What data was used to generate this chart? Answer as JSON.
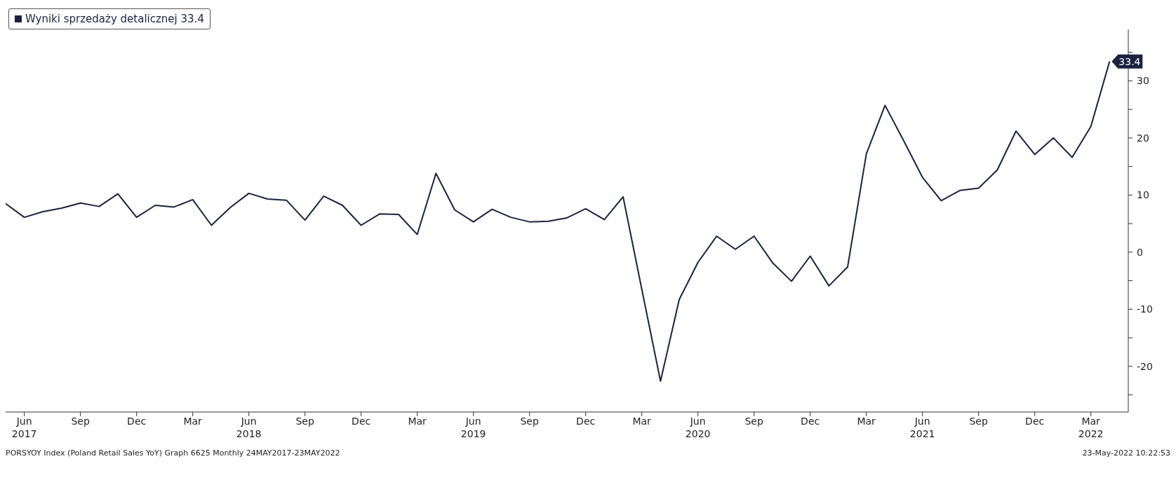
{
  "chart_data": {
    "type": "line",
    "x": [
      "2017-05",
      "2017-06",
      "2017-07",
      "2017-08",
      "2017-09",
      "2017-10",
      "2017-11",
      "2017-12",
      "2018-01",
      "2018-02",
      "2018-03",
      "2018-04",
      "2018-05",
      "2018-06",
      "2018-07",
      "2018-08",
      "2018-09",
      "2018-10",
      "2018-11",
      "2018-12",
      "2019-01",
      "2019-02",
      "2019-03",
      "2019-04",
      "2019-05",
      "2019-06",
      "2019-07",
      "2019-08",
      "2019-09",
      "2019-10",
      "2019-11",
      "2019-12",
      "2020-01",
      "2020-02",
      "2020-03",
      "2020-04",
      "2020-05",
      "2020-06",
      "2020-07",
      "2020-08",
      "2020-09",
      "2020-10",
      "2020-11",
      "2020-12",
      "2021-01",
      "2021-02",
      "2021-03",
      "2021-04",
      "2021-05",
      "2021-06",
      "2021-07",
      "2021-08",
      "2021-09",
      "2021-10",
      "2021-11",
      "2021-12",
      "2022-01",
      "2022-02",
      "2022-03",
      "2022-04"
    ],
    "series": [
      {
        "name": "Wyniki sprzedaży detalicznej 33.4",
        "color": "#1b2240",
        "values": [
          8.5,
          6.1,
          7.1,
          7.7,
          8.6,
          8.0,
          10.2,
          6.1,
          8.2,
          7.9,
          9.2,
          4.7,
          7.8,
          10.3,
          9.3,
          9.1,
          5.6,
          9.8,
          8.2,
          4.7,
          6.7,
          6.6,
          3.1,
          13.8,
          7.4,
          5.3,
          7.5,
          6.1,
          5.3,
          5.4,
          6.0,
          7.6,
          5.7,
          9.7,
          -6.5,
          -22.6,
          -8.3,
          -1.8,
          2.8,
          0.5,
          2.8,
          -1.9,
          -5.1,
          -0.7,
          -5.9,
          -2.6,
          17.2,
          25.7,
          19.5,
          13.1,
          9.0,
          10.8,
          11.2,
          14.4,
          21.2,
          17.1,
          20.0,
          16.6,
          22.0,
          33.4
        ],
        "value_labels": [
          null,
          null,
          null,
          null,
          null,
          null,
          null,
          null,
          null,
          null,
          null,
          null,
          null,
          null,
          null,
          null,
          null,
          null,
          null,
          null,
          null,
          null,
          null,
          null,
          null,
          null,
          null,
          null,
          null,
          null,
          null,
          null,
          null,
          null,
          null,
          null,
          null,
          null,
          null,
          null,
          null,
          null,
          null,
          null,
          null,
          null,
          null,
          null,
          null,
          null,
          null,
          null,
          null,
          null,
          null,
          null,
          null,
          null,
          null,
          "33.4"
        ]
      }
    ],
    "xlim": [
      "2017-05",
      "2022-05"
    ],
    "xticks": [
      {
        "value": "2017-06",
        "label": "Jun\n2017"
      },
      {
        "value": "2017-09",
        "label": "Sep"
      },
      {
        "value": "2017-12",
        "label": "Dec"
      },
      {
        "value": "2018-03",
        "label": "Mar"
      },
      {
        "value": "2018-06",
        "label": "Jun\n2018"
      },
      {
        "value": "2018-09",
        "label": "Sep"
      },
      {
        "value": "2018-12",
        "label": "Dec"
      },
      {
        "value": "2019-03",
        "label": "Mar"
      },
      {
        "value": "2019-06",
        "label": "Jun\n2019"
      },
      {
        "value": "2019-09",
        "label": "Sep"
      },
      {
        "value": "2019-12",
        "label": "Dec"
      },
      {
        "value": "2020-03",
        "label": "Mar"
      },
      {
        "value": "2020-06",
        "label": "Jun\n2020"
      },
      {
        "value": "2020-09",
        "label": "Sep"
      },
      {
        "value": "2020-12",
        "label": "Dec"
      },
      {
        "value": "2021-03",
        "label": "Mar"
      },
      {
        "value": "2021-06",
        "label": "Jun\n2021"
      },
      {
        "value": "2021-09",
        "label": "Sep"
      },
      {
        "value": "2021-12",
        "label": "Dec"
      },
      {
        "value": "2022-03",
        "label": "Mar\n2022"
      }
    ],
    "ylim": [
      -28,
      39
    ],
    "yticks": [
      {
        "value": 35,
        "label": null
      },
      30,
      {
        "value": 25,
        "label": null
      },
      20,
      {
        "value": 15,
        "label": null
      },
      10,
      {
        "value": 5,
        "label": null
      },
      0,
      {
        "value": -5,
        "label": null
      },
      -10,
      {
        "value": -15,
        "label": null
      },
      -20,
      {
        "value": -25,
        "label": null
      }
    ],
    "grid": false,
    "legend": "top left",
    "marker": "none",
    "line_style": "solid",
    "annotations": [
      "PORSYOY Index (Poland Retail Sales YoY) Graph 6625  Monthly 24MAY2017-23MAY2022",
      "23-May-2022 10:22:53"
    ]
  }
}
